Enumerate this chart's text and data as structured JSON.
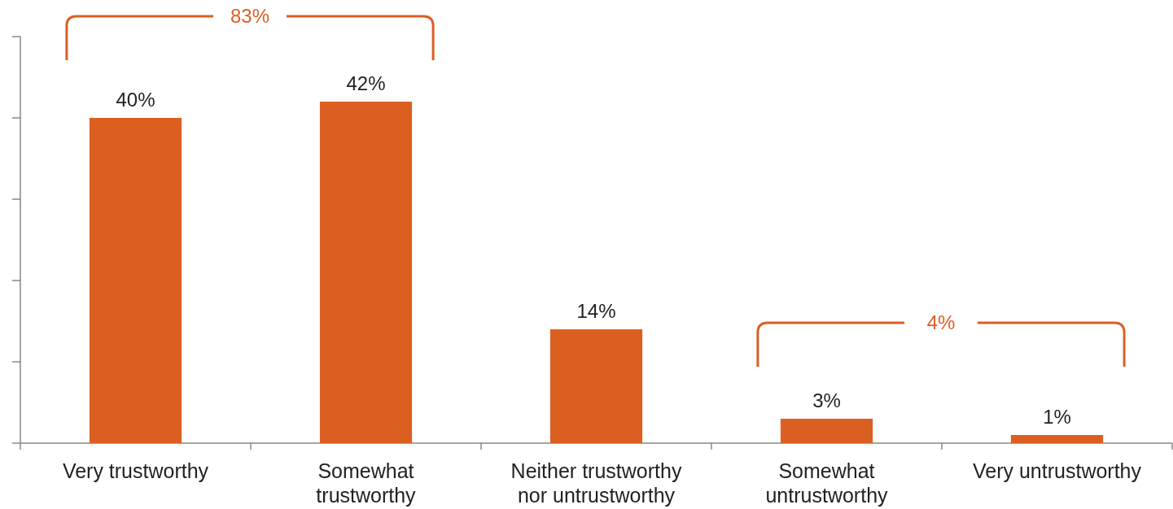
{
  "chart_data": {
    "type": "bar",
    "categories": [
      "Very trustworthy",
      "Somewhat trustworthy",
      "Neither trustworthy nor untrustworthy",
      "Somewhat untrustworthy",
      "Very untrustworthy"
    ],
    "values": [
      40,
      42,
      14,
      3,
      1
    ],
    "value_labels": [
      "40%",
      "42%",
      "14%",
      "3%",
      "1%"
    ],
    "color": "#dc5f22",
    "ylim": [
      0,
      50
    ],
    "yticks": [
      {
        "value": 0,
        "label": null
      },
      {
        "value": 10,
        "label": null
      },
      {
        "value": 20,
        "label": null
      },
      {
        "value": 30,
        "label": null
      },
      {
        "value": 40,
        "label": null
      },
      {
        "value": 50,
        "label": null
      }
    ],
    "tick_labels": "x",
    "annotations": [
      "83%",
      "4%"
    ]
  }
}
